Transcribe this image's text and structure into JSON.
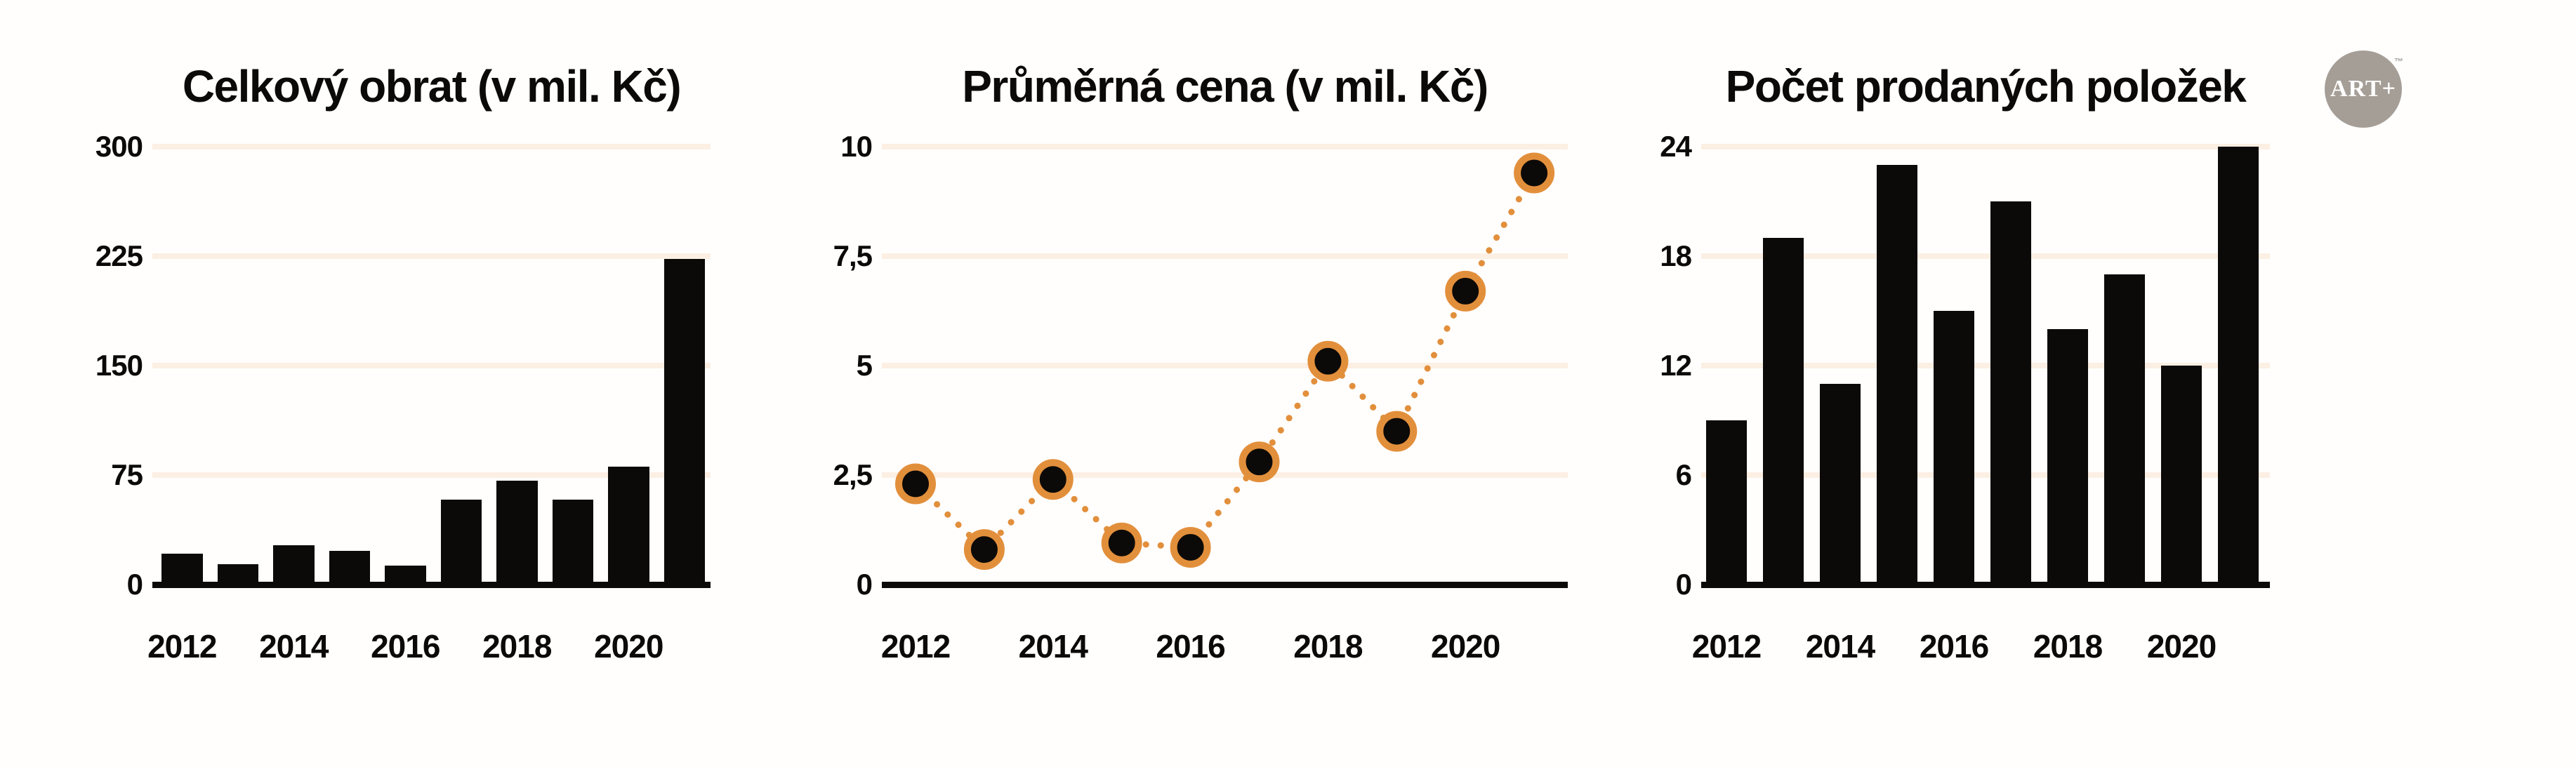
{
  "colors": {
    "ink": "#0c0a08",
    "accent_orange": "#e28f3c",
    "gridline": "#fcefe3",
    "logo_gray": "#a59e97",
    "background": "#fffefc"
  },
  "logo": {
    "label": "ART+",
    "trademark": "™"
  },
  "chart_data": [
    {
      "type": "bar",
      "title": "Celkový obrat (v mil. Kč)",
      "categories": [
        "2012",
        "2013",
        "2014",
        "2015",
        "2016",
        "2017",
        "2018",
        "2019",
        "2020",
        "2021"
      ],
      "values": [
        21,
        14,
        27,
        23,
        13,
        58,
        71,
        58,
        81,
        223
      ],
      "ylim": [
        0,
        300
      ],
      "ytick_labels": [
        "300",
        "225",
        "150",
        "75",
        "0"
      ],
      "xtick_labels": [
        "2012",
        "2014",
        "2016",
        "2018",
        "2020"
      ],
      "grid": true,
      "legend_position": "none",
      "bar_color": "#0c0a08"
    },
    {
      "type": "line",
      "line_style": "dotted",
      "marker": "circle",
      "title": "Průměrná cena (v mil. Kč)",
      "categories": [
        "2012",
        "2013",
        "2014",
        "2015",
        "2016",
        "2017",
        "2018",
        "2019",
        "2020",
        "2021"
      ],
      "values": [
        2.3,
        0.8,
        2.4,
        0.95,
        0.85,
        2.8,
        5.1,
        3.5,
        6.7,
        9.4
      ],
      "ylim": [
        0,
        10
      ],
      "ytick_labels": [
        "10",
        "7,5",
        "5",
        "2,5",
        "0"
      ],
      "xtick_labels": [
        "2012",
        "2014",
        "2016",
        "2018",
        "2020"
      ],
      "grid": true,
      "legend_position": "none",
      "line_color": "#e28f3c",
      "marker_fill": "#0c0a08"
    },
    {
      "type": "bar",
      "title": "Počet prodaných položek",
      "categories": [
        "2012",
        "2013",
        "2014",
        "2015",
        "2016",
        "2017",
        "2018",
        "2019",
        "2020",
        "2021"
      ],
      "values": [
        9,
        19,
        11,
        23,
        15,
        21,
        14,
        17,
        12,
        24
      ],
      "ylim": [
        0,
        24
      ],
      "ytick_labels": [
        "24",
        "18",
        "12",
        "6",
        "0"
      ],
      "xtick_labels": [
        "2012",
        "2014",
        "2016",
        "2018",
        "2020"
      ],
      "grid": true,
      "legend_position": "none",
      "bar_color": "#0c0a08"
    }
  ]
}
